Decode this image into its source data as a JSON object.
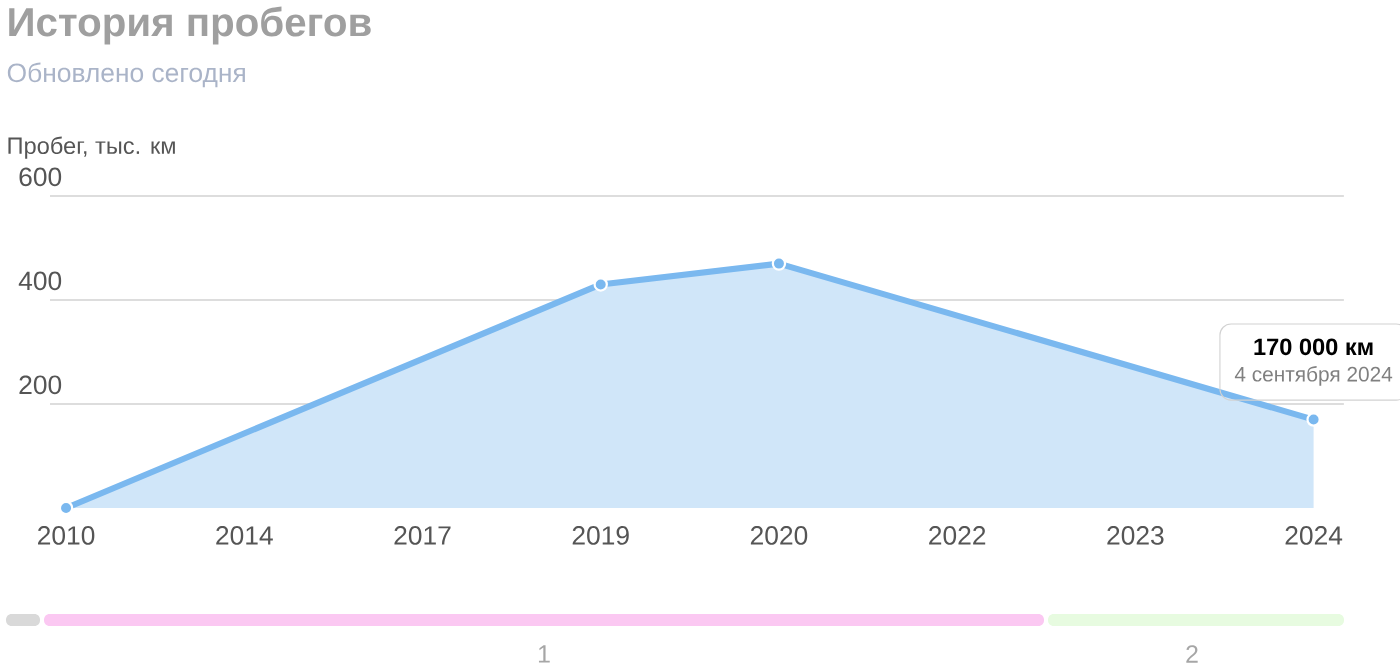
{
  "chart_data": {
    "type": "area",
    "title": "История пробегов",
    "subtitle": "Обновлено сегодня",
    "ylabel": "Пробег, тыс. км",
    "categories": [
      "2010",
      "2014",
      "2017",
      "2019",
      "2020",
      "2022",
      "2023",
      "2024"
    ],
    "series": [
      {
        "color": "#7ab8ef",
        "values": [
          0,
          null,
          null,
          430,
          470,
          null,
          null,
          170
        ]
      }
    ],
    "ylim": [
      0,
      600
    ],
    "yticks": [
      200,
      400,
      600
    ],
    "grid": "y",
    "marker": "circle",
    "line_style": "solid",
    "annotations": [
      {
        "text": "170 000 км",
        "x": "2024",
        "y": 170
      },
      {
        "text": "4 сентября 2024",
        "x": "2024",
        "y": 170
      },
      "1",
      "2"
    ]
  }
}
